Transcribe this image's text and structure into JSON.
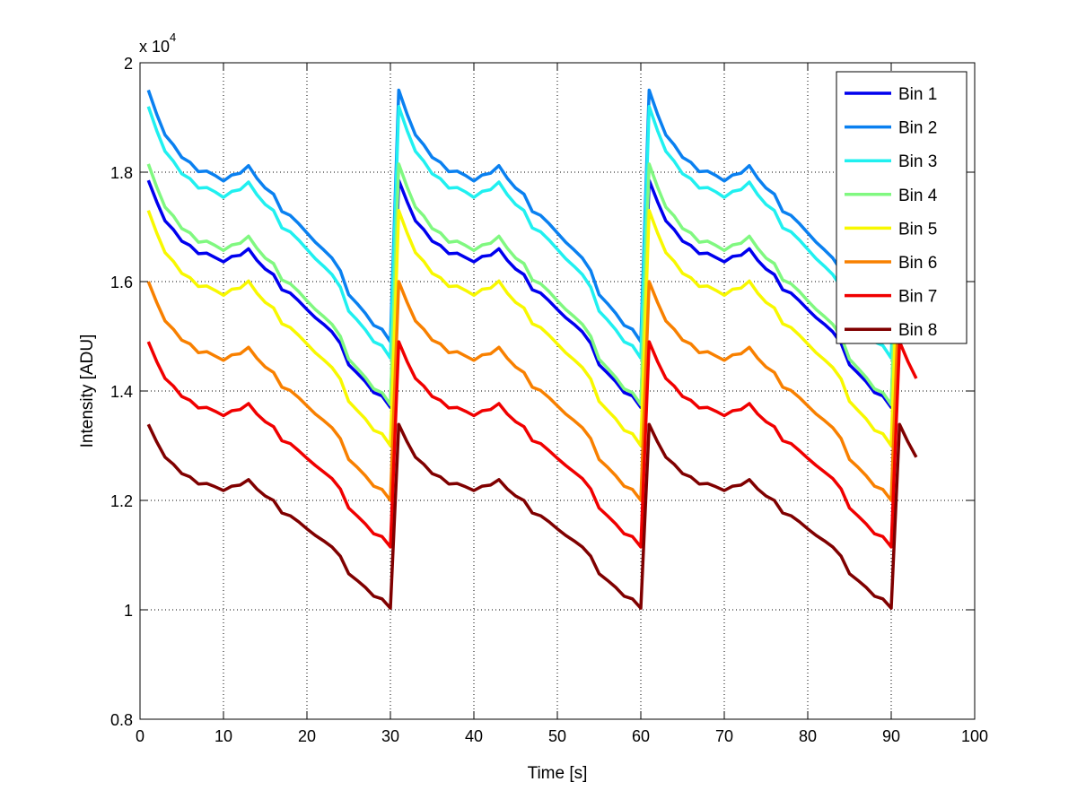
{
  "chart_data": {
    "type": "line",
    "title": "",
    "xlabel": "Time [s]",
    "ylabel": "Intensity [ADU]",
    "y_multiplier_label": {
      "base": "x 10",
      "exponent": "4"
    },
    "y_units_note": "values in units of 10^4 ADU",
    "xlim": [
      0,
      100
    ],
    "ylim": [
      0.8,
      2.0
    ],
    "xticks": [
      "0",
      "10",
      "20",
      "30",
      "40",
      "50",
      "60",
      "70",
      "80",
      "90",
      "100"
    ],
    "yticks": [
      "0.8",
      "1",
      "1.2",
      "1.4",
      "1.6",
      "1.8",
      "2"
    ],
    "grid": true,
    "legend_position": "top-right",
    "x_start": 1,
    "x_end": 93,
    "cycle_length": 30,
    "series": [
      {
        "name": "Bin 1",
        "color": "#0000ee",
        "cycle": [
          1.785,
          1.746,
          1.711,
          1.695,
          1.674,
          1.666,
          1.651,
          1.652,
          1.644,
          1.636,
          1.646,
          1.648,
          1.66,
          1.639,
          1.623,
          1.613,
          1.585,
          1.579,
          1.565,
          1.549,
          1.534,
          1.522,
          1.508,
          1.487,
          1.448,
          1.433,
          1.417,
          1.397,
          1.391,
          1.37
        ]
      },
      {
        "name": "Bin 2",
        "color": "#0a80f0",
        "cycle": [
          1.95,
          1.906,
          1.868,
          1.85,
          1.827,
          1.818,
          1.801,
          1.802,
          1.794,
          1.784,
          1.795,
          1.798,
          1.812,
          1.789,
          1.771,
          1.76,
          1.728,
          1.721,
          1.706,
          1.689,
          1.672,
          1.658,
          1.643,
          1.62,
          1.576,
          1.56,
          1.542,
          1.52,
          1.513,
          1.49
        ]
      },
      {
        "name": "Bin 3",
        "color": "#20f0f0",
        "cycle": [
          1.92,
          1.876,
          1.838,
          1.82,
          1.797,
          1.788,
          1.771,
          1.772,
          1.764,
          1.754,
          1.765,
          1.768,
          1.782,
          1.759,
          1.741,
          1.73,
          1.698,
          1.691,
          1.676,
          1.659,
          1.642,
          1.628,
          1.613,
          1.59,
          1.546,
          1.53,
          1.512,
          1.49,
          1.483,
          1.46
        ]
      },
      {
        "name": "Bin 4",
        "color": "#80f880",
        "cycle": [
          1.815,
          1.773,
          1.736,
          1.72,
          1.697,
          1.689,
          1.672,
          1.674,
          1.666,
          1.657,
          1.667,
          1.67,
          1.683,
          1.661,
          1.643,
          1.633,
          1.603,
          1.596,
          1.582,
          1.565,
          1.549,
          1.536,
          1.522,
          1.5,
          1.458,
          1.442,
          1.425,
          1.404,
          1.397,
          1.375
        ]
      },
      {
        "name": "Bin 5",
        "color": "#f8f800",
        "cycle": [
          1.73,
          1.689,
          1.653,
          1.637,
          1.615,
          1.607,
          1.591,
          1.592,
          1.584,
          1.575,
          1.586,
          1.588,
          1.601,
          1.579,
          1.562,
          1.552,
          1.523,
          1.516,
          1.502,
          1.486,
          1.47,
          1.457,
          1.443,
          1.422,
          1.381,
          1.365,
          1.349,
          1.328,
          1.322,
          1.3
        ]
      },
      {
        "name": "Bin 6",
        "color": "#f88000",
        "cycle": [
          1.6,
          1.562,
          1.528,
          1.513,
          1.493,
          1.486,
          1.47,
          1.472,
          1.464,
          1.456,
          1.466,
          1.468,
          1.48,
          1.46,
          1.444,
          1.434,
          1.407,
          1.401,
          1.388,
          1.373,
          1.358,
          1.346,
          1.333,
          1.313,
          1.275,
          1.261,
          1.245,
          1.226,
          1.22,
          1.2
        ]
      },
      {
        "name": "Bin 7",
        "color": "#f00000",
        "cycle": [
          1.49,
          1.454,
          1.423,
          1.409,
          1.39,
          1.383,
          1.369,
          1.37,
          1.363,
          1.355,
          1.364,
          1.366,
          1.377,
          1.358,
          1.344,
          1.335,
          1.309,
          1.304,
          1.291,
          1.277,
          1.264,
          1.252,
          1.24,
          1.221,
          1.186,
          1.172,
          1.157,
          1.139,
          1.134,
          1.115
        ]
      },
      {
        "name": "Bin 8",
        "color": "#800000",
        "cycle": [
          1.339,
          1.307,
          1.279,
          1.266,
          1.249,
          1.243,
          1.23,
          1.231,
          1.225,
          1.218,
          1.226,
          1.228,
          1.238,
          1.221,
          1.208,
          1.2,
          1.177,
          1.172,
          1.161,
          1.148,
          1.136,
          1.126,
          1.115,
          1.098,
          1.066,
          1.054,
          1.041,
          1.025,
          1.02,
          1.003
        ]
      }
    ]
  }
}
